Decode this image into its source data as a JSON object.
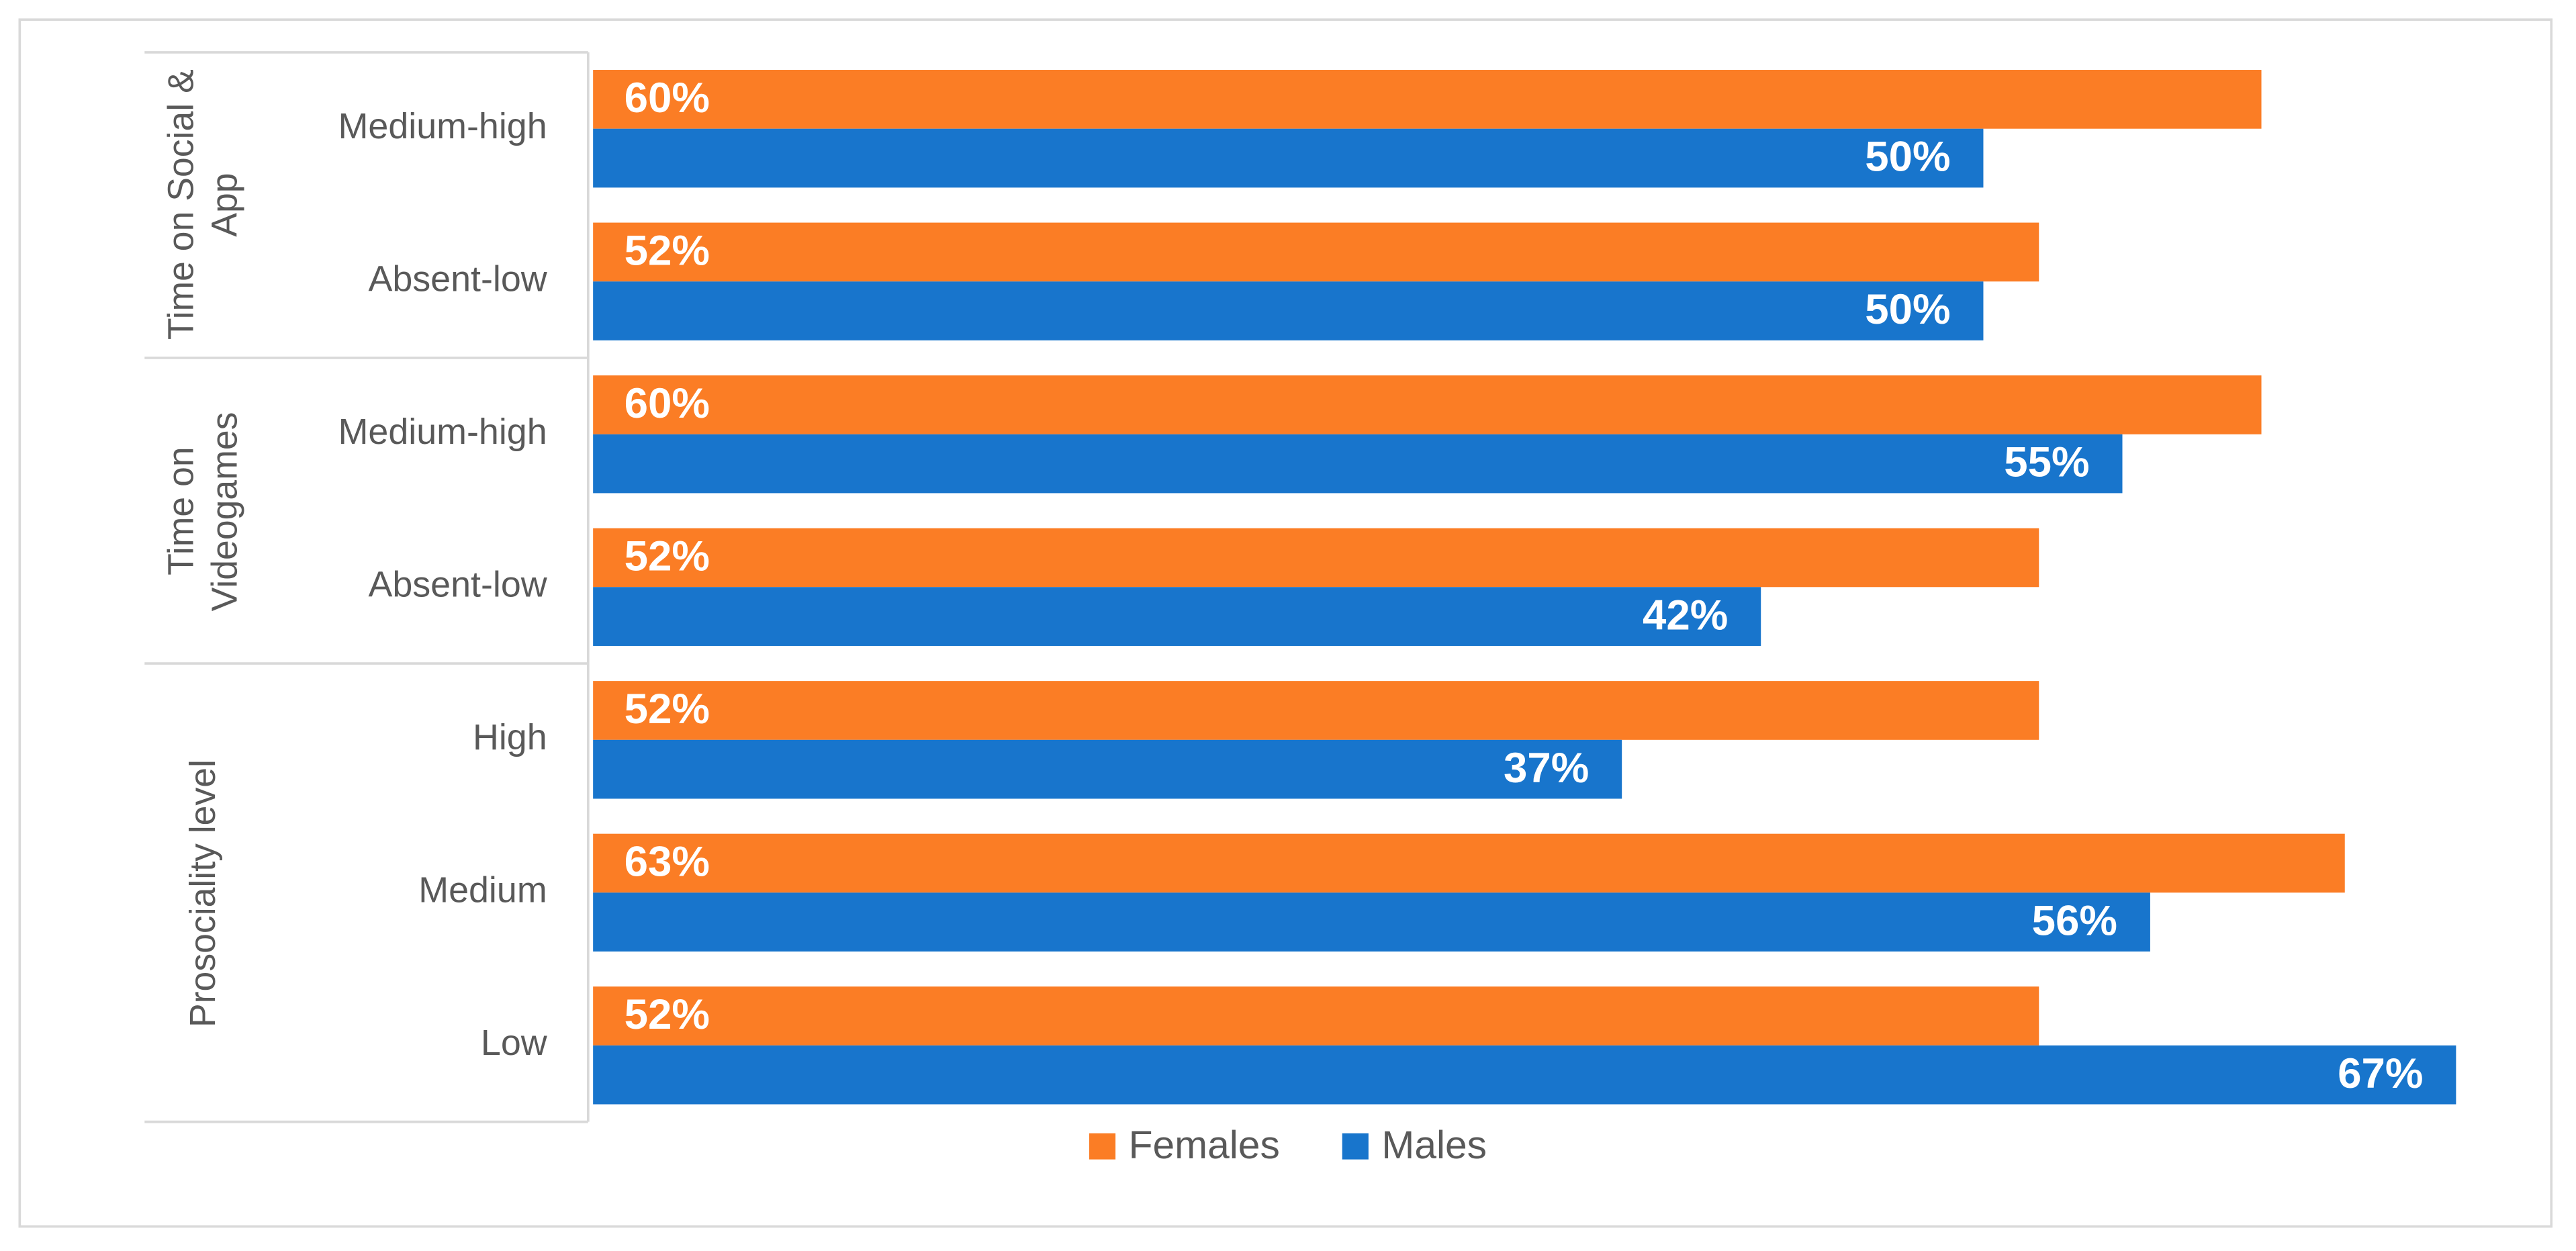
{
  "chart_data": {
    "type": "grouped-hbar",
    "groups": [
      {
        "name": "Time on Social & App",
        "categories": [
          "Medium-high",
          "Absent-low"
        ]
      },
      {
        "name": "Time on Videogames",
        "categories": [
          "Medium-high",
          "Absent-low"
        ]
      },
      {
        "name": "Prosociality level",
        "categories": [
          "High",
          "Medium",
          "Low"
        ]
      }
    ],
    "series": [
      {
        "name": "Females",
        "color": "#fb7d25",
        "values": [
          60,
          52,
          60,
          52,
          52,
          63,
          52
        ],
        "value_labels": [
          "60%",
          "52%",
          "60%",
          "52%",
          "52%",
          "63%",
          "52%"
        ]
      },
      {
        "name": "Males",
        "color": "#1875cc",
        "values": [
          50,
          50,
          55,
          42,
          37,
          56,
          67
        ],
        "value_labels": [
          "50%",
          "50%",
          "55%",
          "42%",
          "37%",
          "56%",
          "67%"
        ]
      }
    ]
  }
}
